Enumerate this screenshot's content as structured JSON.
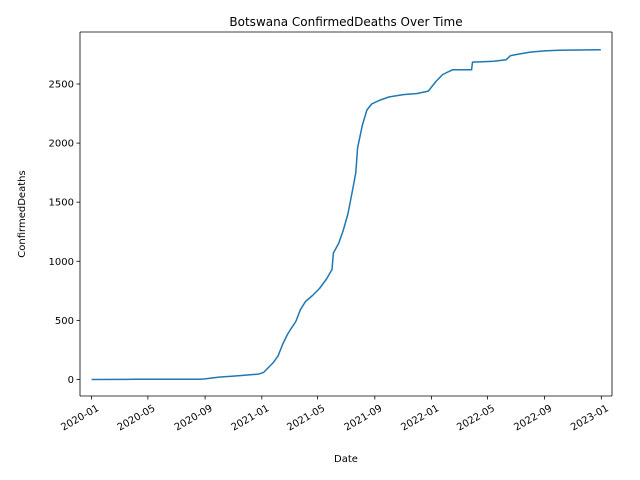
{
  "chart_data": {
    "type": "line",
    "title": "Botswana  ConfirmedDeaths Over Time",
    "xlabel": "Date",
    "ylabel": "ConfirmedDeaths",
    "x_ticks": [
      "2020-01",
      "2020-05",
      "2020-09",
      "2021-01",
      "2021-05",
      "2021-09",
      "2022-01",
      "2022-05",
      "2022-09",
      "2023-01"
    ],
    "y_ticks": [
      0,
      500,
      1000,
      1500,
      2000,
      2500
    ],
    "xlim": [
      "2019-12-07",
      "2023-01-24"
    ],
    "ylim": [
      -140,
      2940
    ],
    "grid": false,
    "series": [
      {
        "color": "#1f77b4",
        "points": [
          [
            "2020-01-01",
            0
          ],
          [
            "2020-04-01",
            1
          ],
          [
            "2020-08-20",
            1
          ],
          [
            "2020-09-01",
            5
          ],
          [
            "2020-10-01",
            20
          ],
          [
            "2020-11-01",
            28
          ],
          [
            "2020-12-01",
            38
          ],
          [
            "2020-12-25",
            45
          ],
          [
            "2021-01-05",
            60
          ],
          [
            "2021-01-15",
            100
          ],
          [
            "2021-01-25",
            140
          ],
          [
            "2021-02-05",
            200
          ],
          [
            "2021-02-15",
            300
          ],
          [
            "2021-02-25",
            380
          ],
          [
            "2021-03-05",
            430
          ],
          [
            "2021-03-15",
            490
          ],
          [
            "2021-03-25",
            590
          ],
          [
            "2021-04-05",
            660
          ],
          [
            "2021-04-20",
            710
          ],
          [
            "2021-05-05",
            770
          ],
          [
            "2021-05-20",
            850
          ],
          [
            "2021-06-01",
            930
          ],
          [
            "2021-06-04",
            1070
          ],
          [
            "2021-06-15",
            1150
          ],
          [
            "2021-06-25",
            1260
          ],
          [
            "2021-07-05",
            1400
          ],
          [
            "2021-07-15",
            1600
          ],
          [
            "2021-07-22",
            1750
          ],
          [
            "2021-07-26",
            1960
          ],
          [
            "2021-08-05",
            2150
          ],
          [
            "2021-08-15",
            2280
          ],
          [
            "2021-08-25",
            2330
          ],
          [
            "2021-09-10",
            2360
          ],
          [
            "2021-10-01",
            2390
          ],
          [
            "2021-11-01",
            2410
          ],
          [
            "2021-12-01",
            2420
          ],
          [
            "2021-12-25",
            2440
          ],
          [
            "2022-01-10",
            2520
          ],
          [
            "2022-01-25",
            2580
          ],
          [
            "2022-02-15",
            2620
          ],
          [
            "2022-03-28",
            2620
          ],
          [
            "2022-03-30",
            2685
          ],
          [
            "2022-04-20",
            2688
          ],
          [
            "2022-05-15",
            2693
          ],
          [
            "2022-06-10",
            2705
          ],
          [
            "2022-06-20",
            2740
          ],
          [
            "2022-07-10",
            2755
          ],
          [
            "2022-08-01",
            2770
          ],
          [
            "2022-09-01",
            2780
          ],
          [
            "2022-10-01",
            2785
          ],
          [
            "2022-12-31",
            2790
          ]
        ]
      }
    ]
  }
}
